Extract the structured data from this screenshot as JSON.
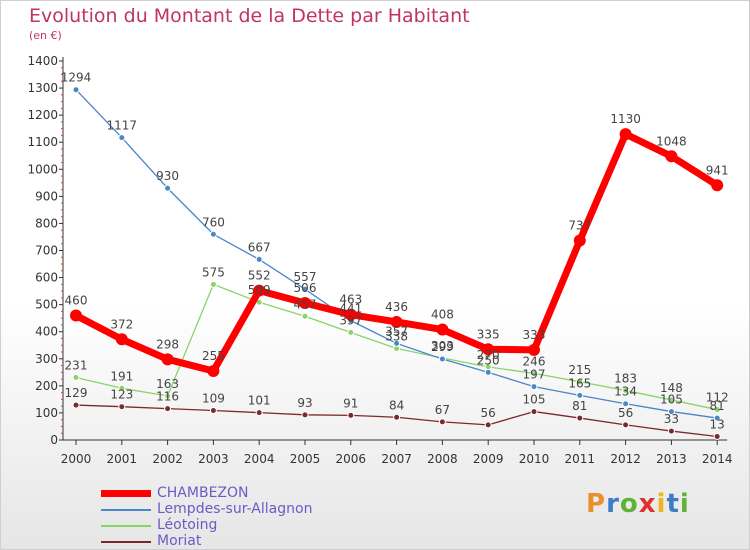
{
  "title": "Evolution du Montant de la Dette par Habitant",
  "subtitle": "(en €)",
  "logo": "Proxiti",
  "chart_data": {
    "type": "line",
    "title": "Evolution du Montant de la Dette par Habitant",
    "subtitle": "(en €)",
    "ylim": [
      0,
      1400
    ],
    "y_ticks": [
      0,
      100,
      200,
      300,
      400,
      500,
      600,
      700,
      800,
      900,
      1000,
      1100,
      1200,
      1300,
      1400
    ],
    "x": [
      "2000",
      "2001",
      "2002",
      "2003",
      "2004",
      "2005",
      "2006",
      "2007",
      "2008",
      "2009",
      "2010",
      "2011",
      "2012",
      "2013",
      "2014"
    ],
    "grid": false,
    "legend": "bottom-left",
    "series": [
      {
        "name": "CHAMBEZON",
        "color": "#ff0000",
        "values": [
          460,
          372,
          298,
          255,
          552,
          506,
          463,
          436,
          408,
          335,
          333,
          737,
          1130,
          1048,
          941
        ]
      },
      {
        "name": "Lempdes-sur-Allagnon",
        "color": "#4a86c8",
        "values": [
          1294,
          1117,
          930,
          760,
          667,
          557,
          441,
          357,
          299,
          250,
          197,
          165,
          134,
          105,
          81
        ]
      },
      {
        "name": "Léotoing",
        "color": "#88d46a",
        "values": [
          231,
          191,
          163,
          575,
          509,
          457,
          397,
          338,
          303,
          270,
          246,
          215,
          183,
          148,
          112
        ]
      },
      {
        "name": "Moriat",
        "color": "#7a2a2a",
        "values": [
          129,
          123,
          116,
          109,
          101,
          93,
          91,
          84,
          67,
          56,
          105,
          81,
          56,
          33,
          13
        ]
      }
    ]
  }
}
